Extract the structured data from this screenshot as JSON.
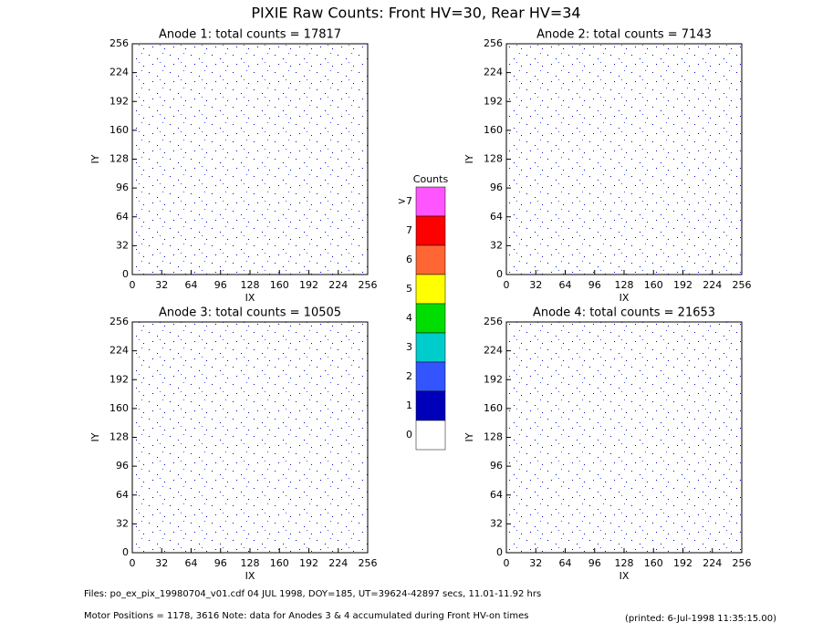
{
  "title": "PIXIE Raw Counts:  Front HV=30, Rear HV=34",
  "chart_data": [
    {
      "type": "heatmap",
      "title": "Anode 1: total counts = 17817",
      "xlabel": "IX",
      "ylabel": "IY",
      "xlim": [
        0,
        256
      ],
      "ylim": [
        0,
        256
      ],
      "xticks": [
        0,
        32,
        64,
        96,
        128,
        160,
        192,
        224,
        256
      ],
      "yticks": [
        0,
        32,
        64,
        96,
        128,
        160,
        192,
        224,
        256
      ]
    },
    {
      "type": "heatmap",
      "title": "Anode 2: total counts = 7143",
      "xlabel": "IX",
      "ylabel": "IY",
      "xlim": [
        0,
        256
      ],
      "ylim": [
        0,
        256
      ],
      "xticks": [
        0,
        32,
        64,
        96,
        128,
        160,
        192,
        224,
        256
      ],
      "yticks": [
        0,
        32,
        64,
        96,
        128,
        160,
        192,
        224,
        256
      ]
    },
    {
      "type": "heatmap",
      "title": "Anode 3: total counts = 10505",
      "xlabel": "IX",
      "ylabel": "IY",
      "xlim": [
        0,
        256
      ],
      "ylim": [
        0,
        256
      ],
      "xticks": [
        0,
        32,
        64,
        96,
        128,
        160,
        192,
        224,
        256
      ],
      "yticks": [
        0,
        32,
        64,
        96,
        128,
        160,
        192,
        224,
        256
      ]
    },
    {
      "type": "heatmap",
      "title": "Anode 4: total counts = 21653",
      "xlabel": "IX",
      "ylabel": "IY",
      "xlim": [
        0,
        256
      ],
      "ylim": [
        0,
        256
      ],
      "xticks": [
        0,
        32,
        64,
        96,
        128,
        160,
        192,
        224,
        256
      ],
      "yticks": [
        0,
        32,
        64,
        96,
        128,
        160,
        192,
        224,
        256
      ]
    }
  ],
  "colorbar": {
    "title": "Counts",
    "levels": [
      {
        "label": ">7",
        "color": "#ff55ff"
      },
      {
        "label": "7",
        "color": "#ff0000"
      },
      {
        "label": "6",
        "color": "#ff6633"
      },
      {
        "label": "5",
        "color": "#ffff00"
      },
      {
        "label": "4",
        "color": "#00dd00"
      },
      {
        "label": "3",
        "color": "#00cccc"
      },
      {
        "label": "2",
        "color": "#3355ff"
      },
      {
        "label": "1",
        "color": "#0000bb"
      },
      {
        "label": "0",
        "color": "#ffffff"
      }
    ]
  },
  "footer": {
    "files": "Files: po_ex_pix_19980704_v01.cdf     04 JUL 1998, DOY=185, UT=39624-42897 secs, 11.01-11.92 hrs",
    "motor": "Motor Positions = 1178, 3616    Note: data for Anodes 3 & 4 accumulated during Front HV-on times",
    "printed": "(printed:  6-Jul-1998 11:35:15.00)"
  }
}
